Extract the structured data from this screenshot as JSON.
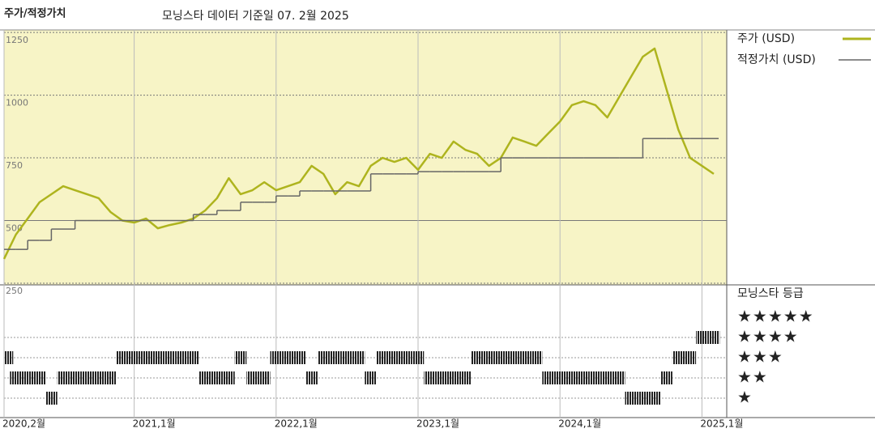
{
  "chart_data": {
    "type": "line",
    "title": "주가/적정가치",
    "subtitle": "모닝스타 데이터 기준일 07. 2월 2025",
    "x": [
      "2020-02",
      "2020-03",
      "2020-04",
      "2020-05",
      "2020-06",
      "2020-07",
      "2020-08",
      "2020-09",
      "2020-10",
      "2020-11",
      "2020-12",
      "2021-01",
      "2021-02",
      "2021-03",
      "2021-04",
      "2021-05",
      "2021-06",
      "2021-07",
      "2021-08",
      "2021-09",
      "2021-10",
      "2021-11",
      "2021-12",
      "2022-01",
      "2022-02",
      "2022-03",
      "2022-04",
      "2022-05",
      "2022-06",
      "2022-07",
      "2022-08",
      "2022-09",
      "2022-10",
      "2022-11",
      "2022-12",
      "2023-01",
      "2023-02",
      "2023-03",
      "2023-04",
      "2023-05",
      "2023-06",
      "2023-07",
      "2023-08",
      "2023-09",
      "2023-10",
      "2023-11",
      "2023-12",
      "2024-01",
      "2024-02",
      "2024-03",
      "2024-04",
      "2024-05",
      "2024-06",
      "2024-07",
      "2024-08",
      "2024-09",
      "2024-10",
      "2024-11",
      "2024-12",
      "2025-01",
      "2025-02"
    ],
    "xticks": [
      {
        "value": "2020-02",
        "label": "2020,2월"
      },
      {
        "value": "2021-01",
        "label": "2021,1월"
      },
      {
        "value": "2022-01",
        "label": "2022,1월"
      },
      {
        "value": "2023-01",
        "label": "2023,1월"
      },
      {
        "value": "2024-01",
        "label": "2024,1월"
      },
      {
        "value": "2025-01",
        "label": "2025,1월"
      }
    ],
    "ylim": [
      250,
      1260
    ],
    "yticks": [
      250,
      500,
      750,
      1000,
      1250
    ],
    "series": [
      {
        "name": "주가 (USD)",
        "color": "#aeb41e",
        "values": [
          347,
          444,
          508,
          573,
          605,
          637,
          621,
          605,
          589,
          534,
          500,
          492,
          508,
          469,
          482,
          492,
          508,
          540,
          589,
          669,
          605,
          621,
          653,
          621,
          637,
          653,
          718,
          686,
          605,
          653,
          637,
          718,
          750,
          734,
          750,
          702,
          766,
          750,
          815,
          782,
          766,
          718,
          750,
          831,
          815,
          798,
          847,
          895,
          960,
          976,
          960,
          911,
          992,
          1073,
          1153,
          1186,
          1024,
          863,
          750,
          718,
          686
        ]
      },
      {
        "name": "적정가치 (USD)",
        "color": "#666666",
        "step": true,
        "values": [
          385,
          385,
          421,
          421,
          466,
          466,
          500,
          500,
          500,
          500,
          500,
          500,
          500,
          500,
          500,
          500,
          524,
          524,
          540,
          540,
          573,
          573,
          573,
          598,
          598,
          618,
          618,
          618,
          618,
          618,
          618,
          686,
          686,
          686,
          686,
          695,
          695,
          695,
          695,
          695,
          695,
          695,
          750,
          750,
          750,
          750,
          750,
          750,
          750,
          750,
          750,
          750,
          750,
          750,
          827,
          827,
          827,
          827,
          827,
          827,
          827
        ]
      }
    ],
    "rating_title": "모닝스타 등급",
    "rating_levels": [
      5,
      4,
      3,
      2,
      1
    ],
    "rating_labels": [
      "★★★★★",
      "★★★★",
      "★★★",
      "★★",
      "★"
    ],
    "ratings": [
      3,
      2,
      2,
      2,
      1,
      2,
      2,
      2,
      2,
      2,
      3,
      3,
      3,
      3,
      3,
      3,
      3,
      2,
      2,
      2,
      3,
      2,
      2,
      3,
      3,
      3,
      2,
      3,
      3,
      3,
      3,
      2,
      3,
      3,
      3,
      3,
      2,
      2,
      2,
      2,
      3,
      3,
      3,
      3,
      3,
      3,
      2,
      2,
      2,
      2,
      2,
      2,
      2,
      1,
      1,
      1,
      2,
      3,
      3,
      4,
      4
    ]
  }
}
